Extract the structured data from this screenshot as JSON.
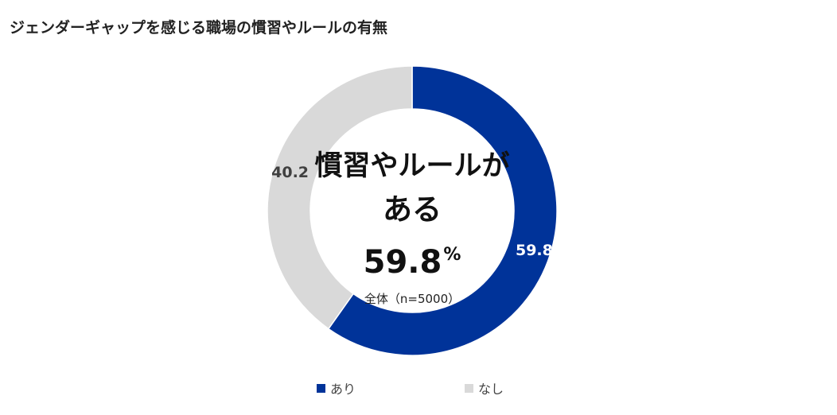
{
  "title": "ジェンダーギャップを感じる職場の慣習やルールの有無",
  "center": {
    "line1": "慣習やルールが",
    "line2": "ある",
    "value": "59.8",
    "unit": "%",
    "sample": "全体（n=5000）"
  },
  "colors": {
    "accent": "#003399",
    "muted": "#d9d9d9"
  },
  "chart_data": {
    "type": "pie",
    "subtype": "donut",
    "categories": [
      "あり",
      "なし"
    ],
    "values": [
      59.8,
      40.2
    ],
    "colors": [
      "#003399",
      "#d9d9d9"
    ],
    "start": "top",
    "direction": "clockwise",
    "legend_position": "bottom"
  }
}
